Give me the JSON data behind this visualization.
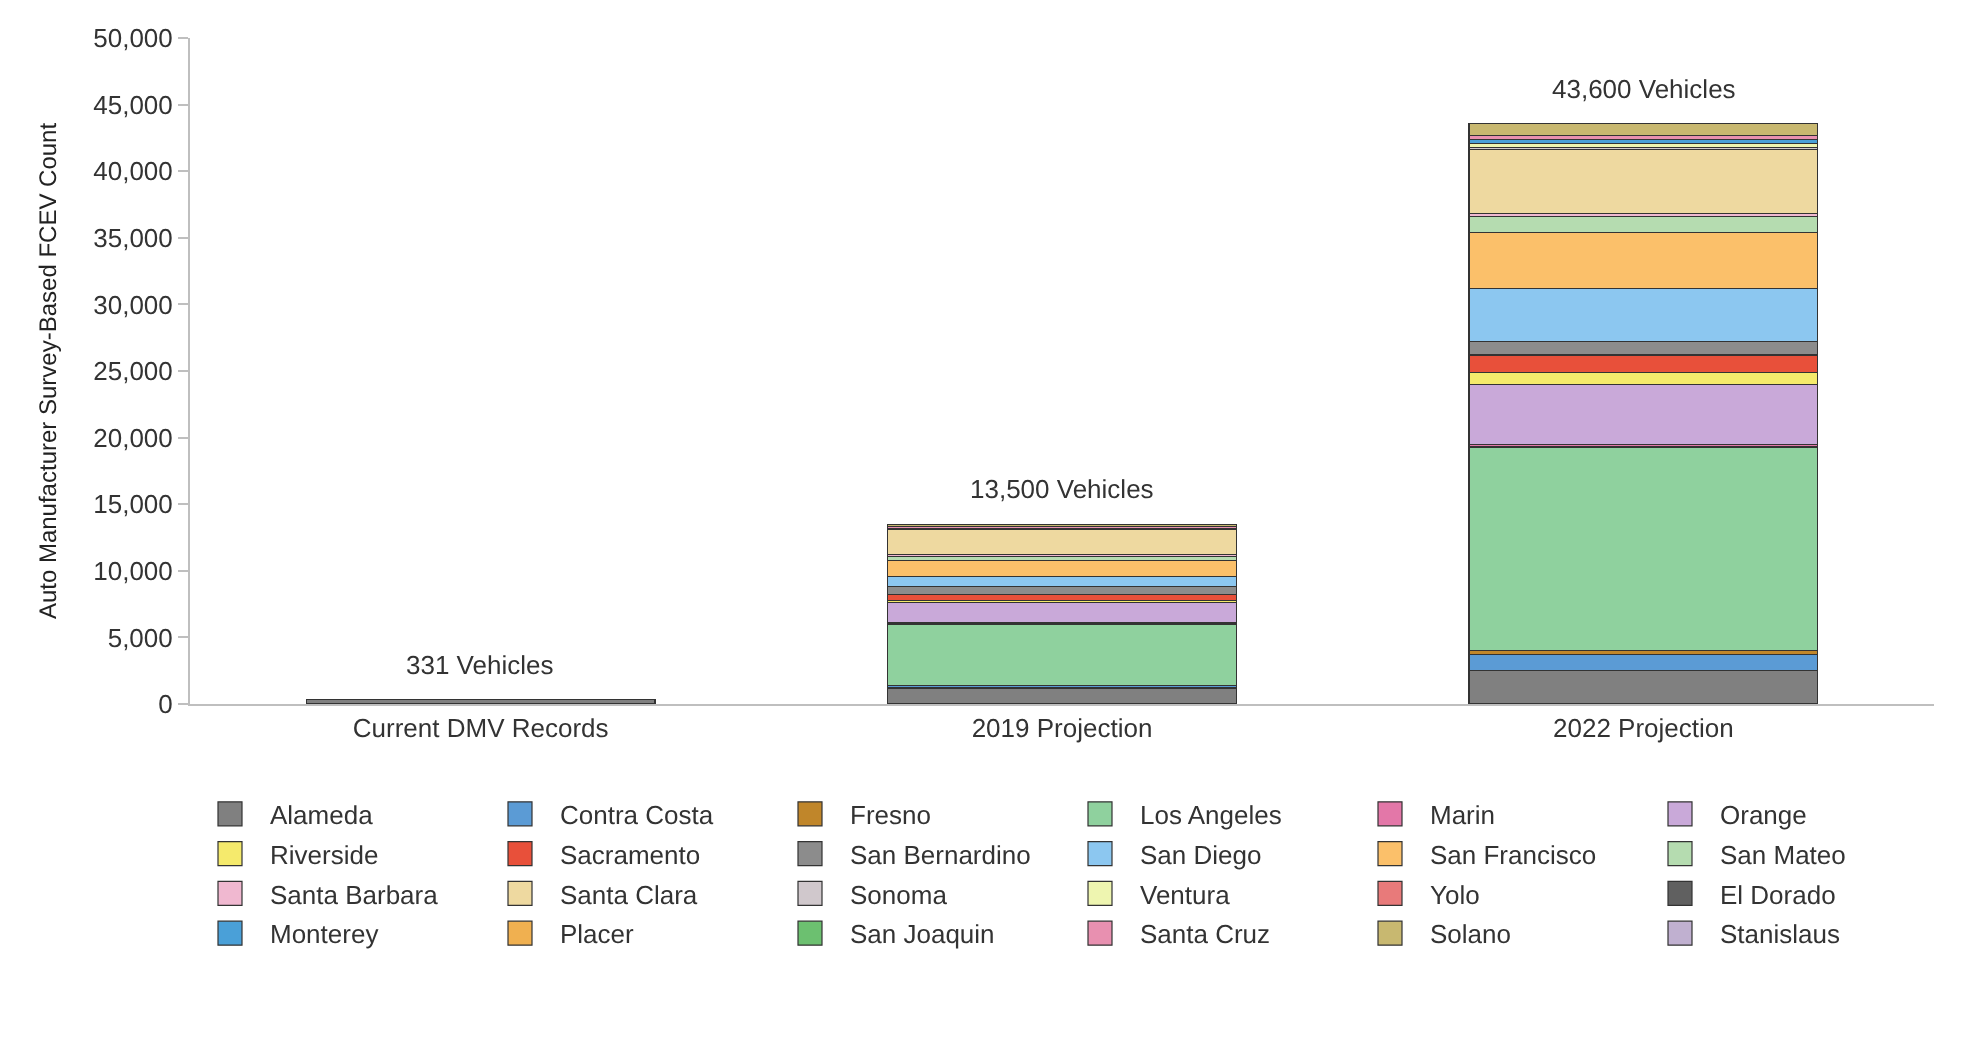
{
  "chart_data": {
    "type": "bar",
    "stacked": true,
    "ylabel": "Auto Manufacturer Survey-Based FCEV Count",
    "categories": [
      "Current DMV Records",
      "2019 Projection",
      "2022 Projection"
    ],
    "ylim": [
      0,
      50000
    ],
    "yticks": [
      {
        "value": 0,
        "label": "0"
      },
      {
        "value": 5000,
        "label": "5,000"
      },
      {
        "value": 10000,
        "label": "10,000"
      },
      {
        "value": 15000,
        "label": "15,000"
      },
      {
        "value": 20000,
        "label": "20,000"
      },
      {
        "value": 25000,
        "label": "25,000"
      },
      {
        "value": 30000,
        "label": "30,000"
      },
      {
        "value": 35000,
        "label": "35,000"
      },
      {
        "value": 40000,
        "label": "40,000"
      },
      {
        "value": 45000,
        "label": "45,000"
      },
      {
        "value": 50000,
        "label": "50,000"
      }
    ],
    "legend": "bottom",
    "totals": [
      "331 Vehicles",
      "13,500 Vehicles",
      "43,600 Vehicles"
    ],
    "series": [
      {
        "name": "Alameda",
        "color": "#808080",
        "values": [
          331,
          1200,
          2500
        ]
      },
      {
        "name": "Contra Costa",
        "color": "#5b9bd5",
        "values": [
          null,
          200,
          1200
        ]
      },
      {
        "name": "Fresno",
        "color": "#c0862a",
        "values": [
          null,
          null,
          300
        ]
      },
      {
        "name": "Los Angeles",
        "color": "#8fd19e",
        "values": [
          null,
          4600,
          15300
        ]
      },
      {
        "name": "Marin",
        "color": "#e377a8",
        "values": [
          null,
          100,
          200
        ]
      },
      {
        "name": "Orange",
        "color": "#c9a9d9",
        "values": [
          null,
          1500,
          4500
        ]
      },
      {
        "name": "Riverside",
        "color": "#f5ea6c",
        "values": [
          null,
          200,
          900
        ]
      },
      {
        "name": "Sacramento",
        "color": "#e8503a",
        "values": [
          null,
          400,
          1300
        ]
      },
      {
        "name": "San Bernardino",
        "color": "#8c8c8c",
        "values": [
          null,
          600,
          1000
        ]
      },
      {
        "name": "San Diego",
        "color": "#8cc7f0",
        "values": [
          null,
          800,
          4000
        ]
      },
      {
        "name": "San Francisco",
        "color": "#fbc06a",
        "values": [
          null,
          1200,
          4200
        ]
      },
      {
        "name": "San Mateo",
        "color": "#b5dcb0",
        "values": [
          null,
          300,
          1200
        ]
      },
      {
        "name": "Santa Barbara",
        "color": "#f0b8d0",
        "values": [
          null,
          100,
          200
        ]
      },
      {
        "name": "Santa Clara",
        "color": "#eed9a0",
        "values": [
          null,
          1900,
          4800
        ]
      },
      {
        "name": "Sonoma",
        "color": "#d0c8cc",
        "values": [
          null,
          null,
          200
        ]
      },
      {
        "name": "Ventura",
        "color": "#eef5b0",
        "values": [
          null,
          null,
          300
        ]
      },
      {
        "name": "Yolo",
        "color": "#e87a7a",
        "values": [
          null,
          null,
          null
        ]
      },
      {
        "name": "El Dorado",
        "color": "#606060",
        "values": [
          null,
          null,
          null
        ]
      },
      {
        "name": "Monterey",
        "color": "#4aa0d8",
        "values": [
          null,
          100,
          300
        ]
      },
      {
        "name": "Placer",
        "color": "#f0b050",
        "values": [
          null,
          null,
          null
        ]
      },
      {
        "name": "San Joaquin",
        "color": "#6cc070",
        "values": [
          null,
          null,
          null
        ]
      },
      {
        "name": "Santa Cruz",
        "color": "#e890b0",
        "values": [
          null,
          100,
          300
        ]
      },
      {
        "name": "Solano",
        "color": "#c8b870",
        "values": [
          null,
          200,
          900
        ]
      },
      {
        "name": "Stanislaus",
        "color": "#c0b0d0",
        "values": [
          null,
          null,
          null
        ]
      }
    ]
  }
}
